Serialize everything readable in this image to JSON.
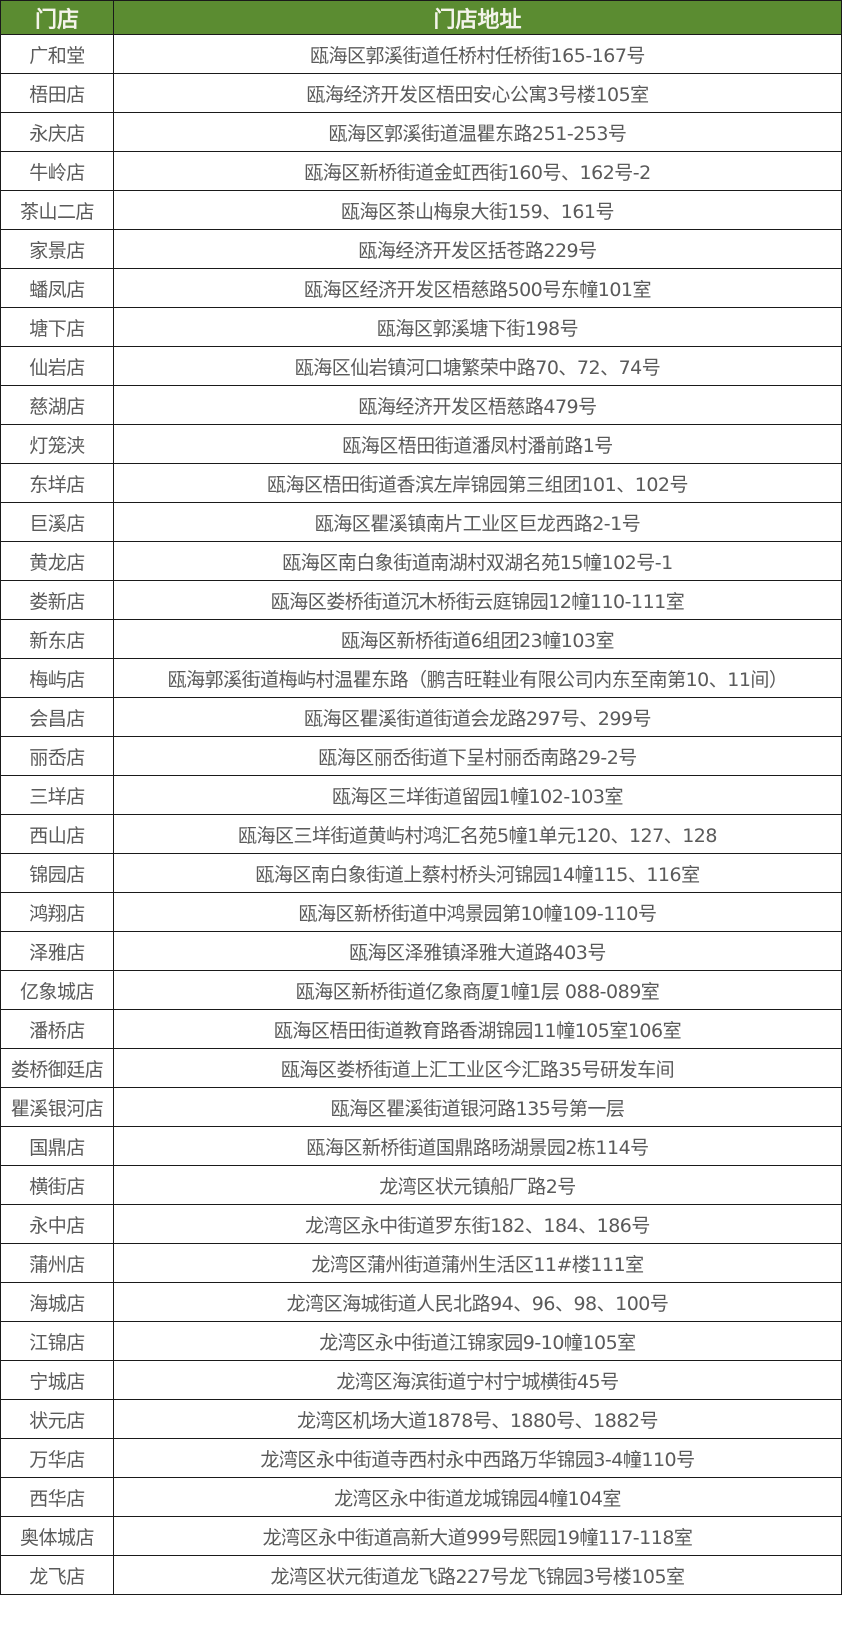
{
  "header": {
    "store": "门店",
    "address": "门店地址",
    "color": "#5b8c31"
  },
  "rows": [
    {
      "store": "广和堂",
      "address": "瓯海区郭溪街道任桥村任桥街165-167号"
    },
    {
      "store": "梧田店",
      "address": "瓯海经济开发区梧田安心公寓3号楼105室"
    },
    {
      "store": "永庆店",
      "address": "瓯海区郭溪街道温瞿东路251-253号"
    },
    {
      "store": "牛岭店",
      "address": "瓯海区新桥街道金虹西街160号、162号-2"
    },
    {
      "store": "茶山二店",
      "address": "瓯海区茶山梅泉大街159、161号"
    },
    {
      "store": "家景店",
      "address": "瓯海经济开发区括苍路229号"
    },
    {
      "store": "蟠凤店",
      "address": "瓯海区经济开发区梧慈路500号东幢101室"
    },
    {
      "store": "塘下店",
      "address": "瓯海区郭溪塘下街198号"
    },
    {
      "store": "仙岩店",
      "address": "瓯海区仙岩镇河口塘繁荣中路70、72、74号"
    },
    {
      "store": "慈湖店",
      "address": "瓯海经济开发区梧慈路479号"
    },
    {
      "store": "灯笼浃",
      "address": "瓯海区梧田街道潘凤村潘前路1号"
    },
    {
      "store": "东垟店",
      "address": "瓯海区梧田街道香滨左岸锦园第三组团101、102号"
    },
    {
      "store": "巨溪店",
      "address": "瓯海区瞿溪镇南片工业区巨龙西路2-1号"
    },
    {
      "store": "黄龙店",
      "address": "瓯海区南白象街道南湖村双湖名苑15幢102号-1"
    },
    {
      "store": "娄新店",
      "address": "瓯海区娄桥街道沉木桥街云庭锦园12幢110-111室"
    },
    {
      "store": "新东店",
      "address": "瓯海区新桥街道6组团23幢103室"
    },
    {
      "store": "梅屿店",
      "address": "瓯海郭溪街道梅屿村温瞿东路（鹏吉旺鞋业有限公司内东至南第10、11间）"
    },
    {
      "store": "会昌店",
      "address": "瓯海区瞿溪街道街道会龙路297号、299号"
    },
    {
      "store": "丽岙店",
      "address": "瓯海区丽岙街道下呈村丽岙南路29-2号"
    },
    {
      "store": "三垟店",
      "address": "瓯海区三垟街道留园1幢102-103室"
    },
    {
      "store": "西山店",
      "address": "瓯海区三垟街道黄屿村鸿汇名苑5幢1单元120、127、128"
    },
    {
      "store": "锦园店",
      "address": "瓯海区南白象街道上蔡村桥头河锦园14幢115、116室"
    },
    {
      "store": "鸿翔店",
      "address": "瓯海区新桥街道中鸿景园第10幢109-110号"
    },
    {
      "store": "泽雅店",
      "address": "瓯海区泽雅镇泽雅大道路403号"
    },
    {
      "store": "亿象城店",
      "address": "瓯海区新桥街道亿象商厦1幢1层  088-089室"
    },
    {
      "store": "潘桥店",
      "address": "瓯海区梧田街道教育路香湖锦园11幢105室106室"
    },
    {
      "store": "娄桥御廷店",
      "address": "瓯海区娄桥街道上汇工业区今汇路35号研发车间"
    },
    {
      "store": "瞿溪银河店",
      "address": "瓯海区瞿溪街道银河路135号第一层"
    },
    {
      "store": "国鼎店",
      "address": "瓯海区新桥街道国鼎路旸湖景园2栋114号"
    },
    {
      "store": "横街店",
      "address": "龙湾区状元镇船厂路2号"
    },
    {
      "store": "永中店",
      "address": "龙湾区永中街道罗东街182、184、186号"
    },
    {
      "store": "蒲州店",
      "address": "龙湾区蒲州街道蒲州生活区11#楼111室"
    },
    {
      "store": "海城店",
      "address": "龙湾区海城街道人民北路94、96、98、100号"
    },
    {
      "store": "江锦店",
      "address": "龙湾区永中街道江锦家园9-10幢105室"
    },
    {
      "store": "宁城店",
      "address": "龙湾区海滨街道宁村宁城横街45号"
    },
    {
      "store": "状元店",
      "address": "龙湾区机场大道1878号、1880号、1882号"
    },
    {
      "store": "万华店",
      "address": "龙湾区永中街道寺西村永中西路万华锦园3-4幢110号"
    },
    {
      "store": "西华店",
      "address": "龙湾区永中街道龙城锦园4幢104室"
    },
    {
      "store": "奥体城店",
      "address": "龙湾区永中街道高新大道999号熙园19幢117-118室"
    },
    {
      "store": "龙飞店",
      "address": "龙湾区状元街道龙飞路227号龙飞锦园3号楼105室"
    }
  ]
}
